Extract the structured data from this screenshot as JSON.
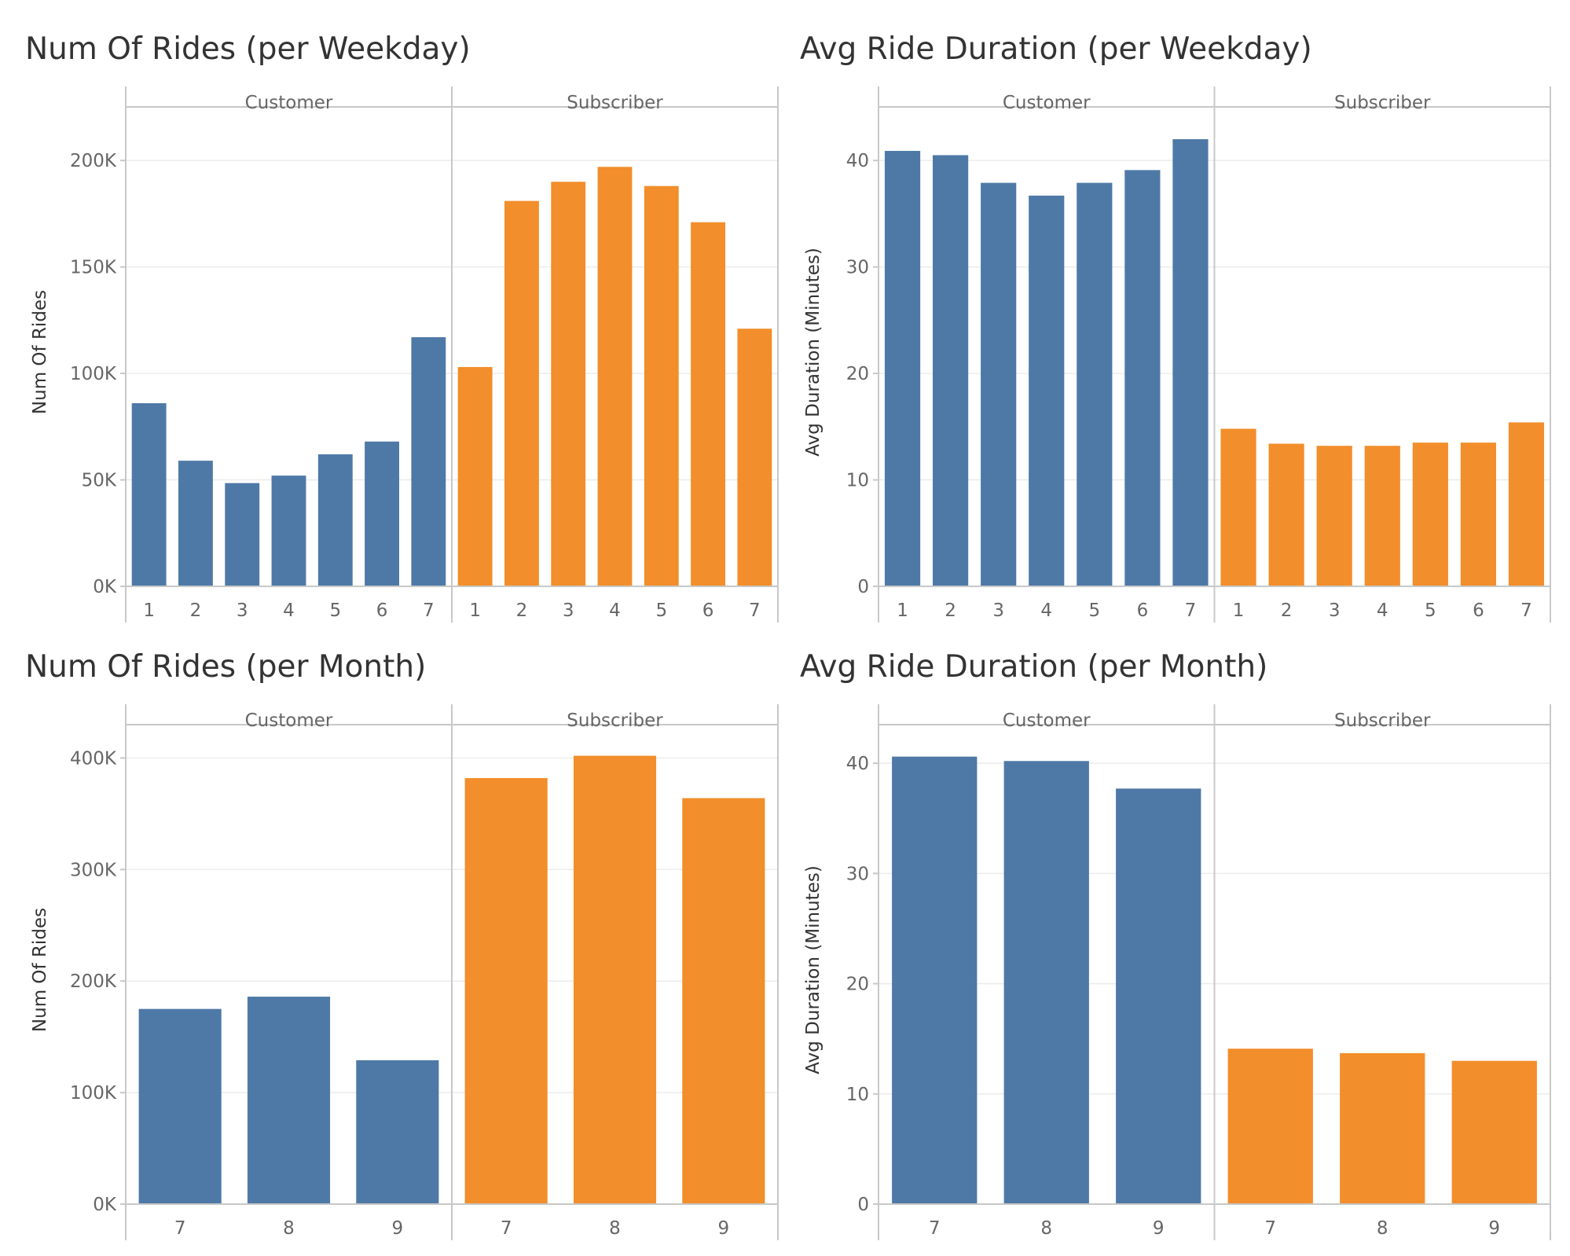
{
  "chart_data": [
    {
      "type": "bar",
      "title": "Num Of Rides (per Weekday)",
      "ylabel": "Num Of Rides",
      "xlabel": "",
      "facets": [
        "Customer",
        "Subscriber"
      ],
      "categories": [
        "1",
        "2",
        "3",
        "4",
        "5",
        "6",
        "7"
      ],
      "series": [
        {
          "name": "Customer",
          "color": "#4e79a7",
          "values": [
            86000,
            59000,
            48500,
            52000,
            62000,
            68000,
            117000
          ]
        },
        {
          "name": "Subscriber",
          "color": "#f28e2b",
          "values": [
            103000,
            181000,
            190000,
            197000,
            188000,
            171000,
            121000
          ]
        }
      ],
      "ylim": [
        0,
        220000
      ],
      "yticks": [
        0,
        50000,
        100000,
        150000,
        200000
      ],
      "ytick_labels": [
        "0K",
        "50K",
        "100K",
        "150K",
        "200K"
      ],
      "grid": true,
      "legend": "none"
    },
    {
      "type": "bar",
      "title": "Avg Ride Duration (per Weekday)",
      "ylabel": "Avg Duration (Minutes)",
      "xlabel": "",
      "facets": [
        "Customer",
        "Subscriber"
      ],
      "categories": [
        "1",
        "2",
        "3",
        "4",
        "5",
        "6",
        "7"
      ],
      "series": [
        {
          "name": "Customer",
          "color": "#4e79a7",
          "values": [
            40.9,
            40.5,
            37.9,
            36.7,
            37.9,
            39.1,
            42.0
          ]
        },
        {
          "name": "Subscriber",
          "color": "#f28e2b",
          "values": [
            14.8,
            13.4,
            13.2,
            13.2,
            13.5,
            13.5,
            15.4
          ]
        }
      ],
      "ylim": [
        0,
        44
      ],
      "yticks": [
        0,
        10,
        20,
        30,
        40
      ],
      "ytick_labels": [
        "0",
        "10",
        "20",
        "30",
        "40"
      ],
      "grid": true,
      "legend": "none"
    },
    {
      "type": "bar",
      "title": "Num Of Rides (per Month)",
      "ylabel": "Num Of Rides",
      "xlabel": "",
      "facets": [
        "Customer",
        "Subscriber"
      ],
      "categories": [
        "7",
        "8",
        "9"
      ],
      "series": [
        {
          "name": "Customer",
          "color": "#4e79a7",
          "values": [
            175000,
            186000,
            129000
          ]
        },
        {
          "name": "Subscriber",
          "color": "#f28e2b",
          "values": [
            382000,
            402000,
            364000
          ]
        }
      ],
      "ylim": [
        0,
        420000
      ],
      "yticks": [
        0,
        100000,
        200000,
        300000,
        400000
      ],
      "ytick_labels": [
        "0K",
        "100K",
        "200K",
        "300K",
        "400K"
      ],
      "grid": true,
      "legend": "none"
    },
    {
      "type": "bar",
      "title": "Avg Ride Duration (per Month)",
      "ylabel": "Avg Duration (Minutes)",
      "xlabel": "",
      "facets": [
        "Customer",
        "Subscriber"
      ],
      "categories": [
        "7",
        "8",
        "9"
      ],
      "series": [
        {
          "name": "Customer",
          "color": "#4e79a7",
          "values": [
            40.6,
            40.2,
            37.7
          ]
        },
        {
          "name": "Subscriber",
          "color": "#f28e2b",
          "values": [
            14.1,
            13.7,
            13.0
          ]
        }
      ],
      "ylim": [
        0,
        42.5
      ],
      "yticks": [
        0,
        10,
        20,
        30,
        40
      ],
      "ytick_labels": [
        "0",
        "10",
        "20",
        "30",
        "40"
      ],
      "grid": true,
      "legend": "none"
    }
  ]
}
